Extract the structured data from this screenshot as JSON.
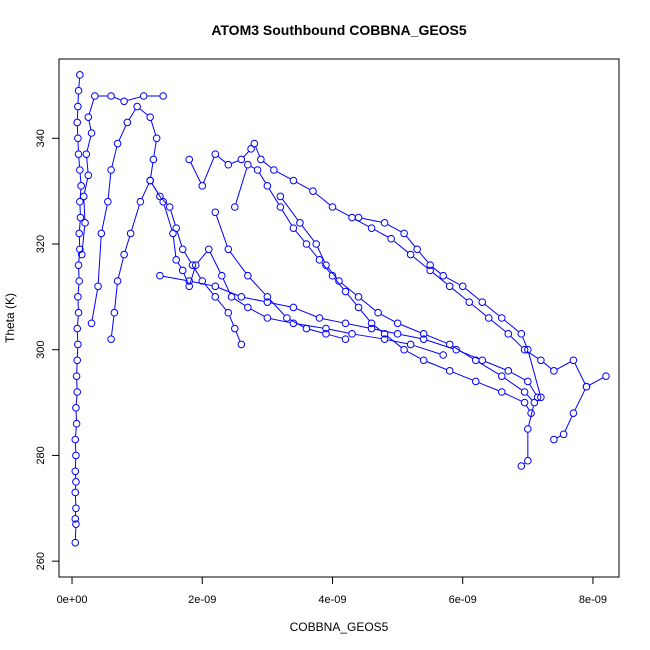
{
  "chart_data": {
    "type": "scatter",
    "title": "ATOM3 Southbound COBBNA_GEOS5",
    "xlabel": "COBBNA_GEOS5",
    "ylabel": "Theta (K)",
    "xlim": [
      -2e-10,
      8.4e-09
    ],
    "ylim": [
      257,
      355
    ],
    "x_ticks": [
      0,
      2e-09,
      4e-09,
      6e-09,
      8e-09
    ],
    "x_tick_labels": [
      "0e+00",
      "2e-09",
      "4e-09",
      "6e-09",
      "8e-09"
    ],
    "y_ticks": [
      260,
      280,
      300,
      320,
      340
    ],
    "y_tick_labels": [
      "260",
      "280",
      "300",
      "320",
      "340"
    ],
    "grid": false,
    "colors": {
      "series": "#0000ff",
      "axis": "#000000"
    },
    "series": [
      {
        "points": [
          [
            5e-11,
            263.5
          ],
          [
            6e-11,
            267
          ],
          [
            5e-11,
            268
          ],
          [
            6e-11,
            270
          ],
          [
            5e-11,
            273
          ],
          [
            6e-11,
            275
          ],
          [
            5e-11,
            277
          ],
          [
            6e-11,
            280
          ],
          [
            5e-11,
            283
          ],
          [
            7e-11,
            286
          ],
          [
            6e-11,
            289
          ],
          [
            8e-11,
            292
          ],
          [
            7e-11,
            295
          ],
          [
            8e-11,
            298
          ],
          [
            9e-11,
            301
          ],
          [
            8e-11,
            304
          ],
          [
            1e-10,
            307
          ],
          [
            9e-11,
            310
          ],
          [
            1.1e-10,
            313
          ],
          [
            1e-10,
            316
          ],
          [
            1.2e-10,
            319
          ],
          [
            1.1e-10,
            322
          ],
          [
            1.3e-10,
            325
          ],
          [
            1.2e-10,
            328
          ],
          [
            1.4e-10,
            331
          ],
          [
            1.2e-10,
            334
          ],
          [
            1e-10,
            337
          ],
          [
            9e-11,
            340
          ],
          [
            8e-11,
            343
          ],
          [
            9e-11,
            346
          ],
          [
            1e-10,
            349
          ],
          [
            1.2e-10,
            352
          ]
        ]
      },
      {
        "points": [
          [
            1.5e-10,
            318
          ],
          [
            2e-10,
            324
          ],
          [
            1.8e-10,
            329
          ],
          [
            2.5e-10,
            333
          ],
          [
            2.2e-10,
            337
          ],
          [
            3e-10,
            341
          ],
          [
            2.5e-10,
            344
          ],
          [
            3.5e-10,
            348
          ],
          [
            6e-10,
            348
          ],
          [
            8e-10,
            347
          ],
          [
            1.1e-09,
            348
          ],
          [
            1.4e-09,
            348
          ]
        ]
      },
      {
        "points": [
          [
            3e-10,
            305
          ],
          [
            4e-10,
            312
          ],
          [
            4.5e-10,
            322
          ],
          [
            5.5e-10,
            328
          ],
          [
            6e-10,
            334
          ],
          [
            7e-10,
            339
          ],
          [
            8.5e-10,
            343
          ],
          [
            1e-09,
            346
          ],
          [
            1.2e-09,
            344
          ],
          [
            1.3e-09,
            340
          ],
          [
            1.25e-09,
            336
          ],
          [
            1.2e-09,
            332
          ],
          [
            1.35e-09,
            329
          ],
          [
            1.5e-09,
            327
          ],
          [
            1.6e-09,
            323
          ],
          [
            1.7e-09,
            319
          ],
          [
            1.85e-09,
            316
          ],
          [
            2e-09,
            313
          ],
          [
            2.2e-09,
            310
          ],
          [
            2.4e-09,
            307
          ],
          [
            2.5e-09,
            304
          ],
          [
            2.6e-09,
            301
          ]
        ]
      },
      {
        "points": [
          [
            6e-10,
            302
          ],
          [
            6.5e-10,
            307
          ],
          [
            7e-10,
            313
          ],
          [
            8e-10,
            318
          ],
          [
            9e-10,
            322
          ],
          [
            1.05e-09,
            328
          ],
          [
            1.2e-09,
            332
          ],
          [
            1.4e-09,
            328
          ],
          [
            1.55e-09,
            322
          ],
          [
            1.6e-09,
            317
          ],
          [
            1.7e-09,
            315
          ],
          [
            1.8e-09,
            312
          ],
          [
            1.9e-09,
            316
          ],
          [
            2.1e-09,
            319
          ],
          [
            2.3e-09,
            314
          ],
          [
            2.45e-09,
            310
          ],
          [
            2.7e-09,
            308
          ],
          [
            3e-09,
            306
          ],
          [
            3.4e-09,
            305
          ],
          [
            3.9e-09,
            304
          ],
          [
            4.3e-09,
            303
          ],
          [
            4.8e-09,
            302
          ],
          [
            5.2e-09,
            301
          ],
          [
            5.7e-09,
            299
          ]
        ]
      },
      {
        "points": [
          [
            1.35e-09,
            314
          ],
          [
            1.8e-09,
            313
          ],
          [
            2.2e-09,
            312
          ],
          [
            2.6e-09,
            310
          ],
          [
            3e-09,
            309
          ],
          [
            3.4e-09,
            308
          ],
          [
            3.8e-09,
            306
          ],
          [
            4.2e-09,
            305
          ],
          [
            4.6e-09,
            304
          ],
          [
            5e-09,
            303
          ],
          [
            5.4e-09,
            302
          ],
          [
            5.9e-09,
            300
          ],
          [
            6.3e-09,
            298
          ],
          [
            6.7e-09,
            296
          ],
          [
            7e-09,
            294
          ],
          [
            7.15e-09,
            291
          ]
        ]
      },
      {
        "points": [
          [
            1.8e-09,
            336
          ],
          [
            2e-09,
            331
          ],
          [
            2.2e-09,
            337
          ],
          [
            2.4e-09,
            335
          ],
          [
            2.6e-09,
            336
          ],
          [
            2.75e-09,
            338
          ],
          [
            2.8e-09,
            339
          ],
          [
            2.9e-09,
            336
          ],
          [
            3.1e-09,
            334
          ],
          [
            3.4e-09,
            332
          ],
          [
            3.7e-09,
            330
          ],
          [
            4e-09,
            327
          ],
          [
            4.3e-09,
            325
          ],
          [
            4.6e-09,
            323
          ],
          [
            4.9e-09,
            321
          ],
          [
            5.2e-09,
            318
          ],
          [
            5.5e-09,
            315
          ],
          [
            5.8e-09,
            312
          ],
          [
            6.1e-09,
            309
          ],
          [
            6.4e-09,
            306
          ],
          [
            6.7e-09,
            303
          ],
          [
            6.95e-09,
            300
          ],
          [
            7.2e-09,
            298
          ],
          [
            7.4e-09,
            296
          ],
          [
            7.7e-09,
            298
          ],
          [
            7.9e-09,
            293
          ],
          [
            8.2e-09,
            295
          ]
        ]
      },
      {
        "points": [
          [
            2.5e-09,
            327
          ],
          [
            2.7e-09,
            335
          ],
          [
            2.85e-09,
            334
          ],
          [
            3e-09,
            331
          ],
          [
            3.2e-09,
            327
          ],
          [
            3.4e-09,
            323
          ],
          [
            3.6e-09,
            320
          ],
          [
            3.8e-09,
            317
          ],
          [
            4e-09,
            314
          ],
          [
            4.2e-09,
            311
          ],
          [
            4.4e-09,
            308
          ],
          [
            4.6e-09,
            305
          ],
          [
            4.8e-09,
            303
          ],
          [
            5.1e-09,
            300
          ],
          [
            5.4e-09,
            298
          ],
          [
            5.8e-09,
            296
          ],
          [
            6.2e-09,
            294
          ],
          [
            6.6e-09,
            292
          ],
          [
            6.95e-09,
            290
          ],
          [
            7.05e-09,
            288
          ]
        ]
      },
      {
        "points": [
          [
            2.2e-09,
            326
          ],
          [
            2.4e-09,
            319
          ],
          [
            2.7e-09,
            314
          ],
          [
            3e-09,
            310
          ],
          [
            3.3e-09,
            306
          ],
          [
            3.6e-09,
            304
          ],
          [
            3.9e-09,
            303
          ],
          [
            4.2e-09,
            302
          ]
        ]
      },
      {
        "points": [
          [
            3.2e-09,
            329
          ],
          [
            3.5e-09,
            324
          ],
          [
            3.75e-09,
            320
          ],
          [
            3.9e-09,
            316
          ],
          [
            4.1e-09,
            313
          ],
          [
            4.4e-09,
            310
          ],
          [
            4.7e-09,
            307
          ],
          [
            5e-09,
            305
          ],
          [
            5.4e-09,
            303
          ],
          [
            5.8e-09,
            301
          ],
          [
            6.2e-09,
            298
          ],
          [
            6.6e-09,
            295
          ],
          [
            6.95e-09,
            292
          ],
          [
            7.1e-09,
            290
          ],
          [
            7e-09,
            285
          ],
          [
            7e-09,
            279
          ],
          [
            6.9e-09,
            278
          ]
        ]
      },
      {
        "points": [
          [
            4.4e-09,
            325
          ],
          [
            4.8e-09,
            324
          ],
          [
            5.1e-09,
            322
          ],
          [
            5.3e-09,
            319
          ],
          [
            5.5e-09,
            316
          ],
          [
            5.7e-09,
            314
          ],
          [
            6e-09,
            312
          ],
          [
            6.3e-09,
            309
          ],
          [
            6.6e-09,
            306
          ],
          [
            6.9e-09,
            303
          ],
          [
            7e-09,
            300
          ],
          [
            7.2e-09,
            291
          ]
        ]
      },
      {
        "points": [
          [
            7.4e-09,
            283
          ],
          [
            7.55e-09,
            284
          ],
          [
            7.7e-09,
            288
          ],
          [
            7.9e-09,
            293
          ]
        ]
      }
    ]
  }
}
